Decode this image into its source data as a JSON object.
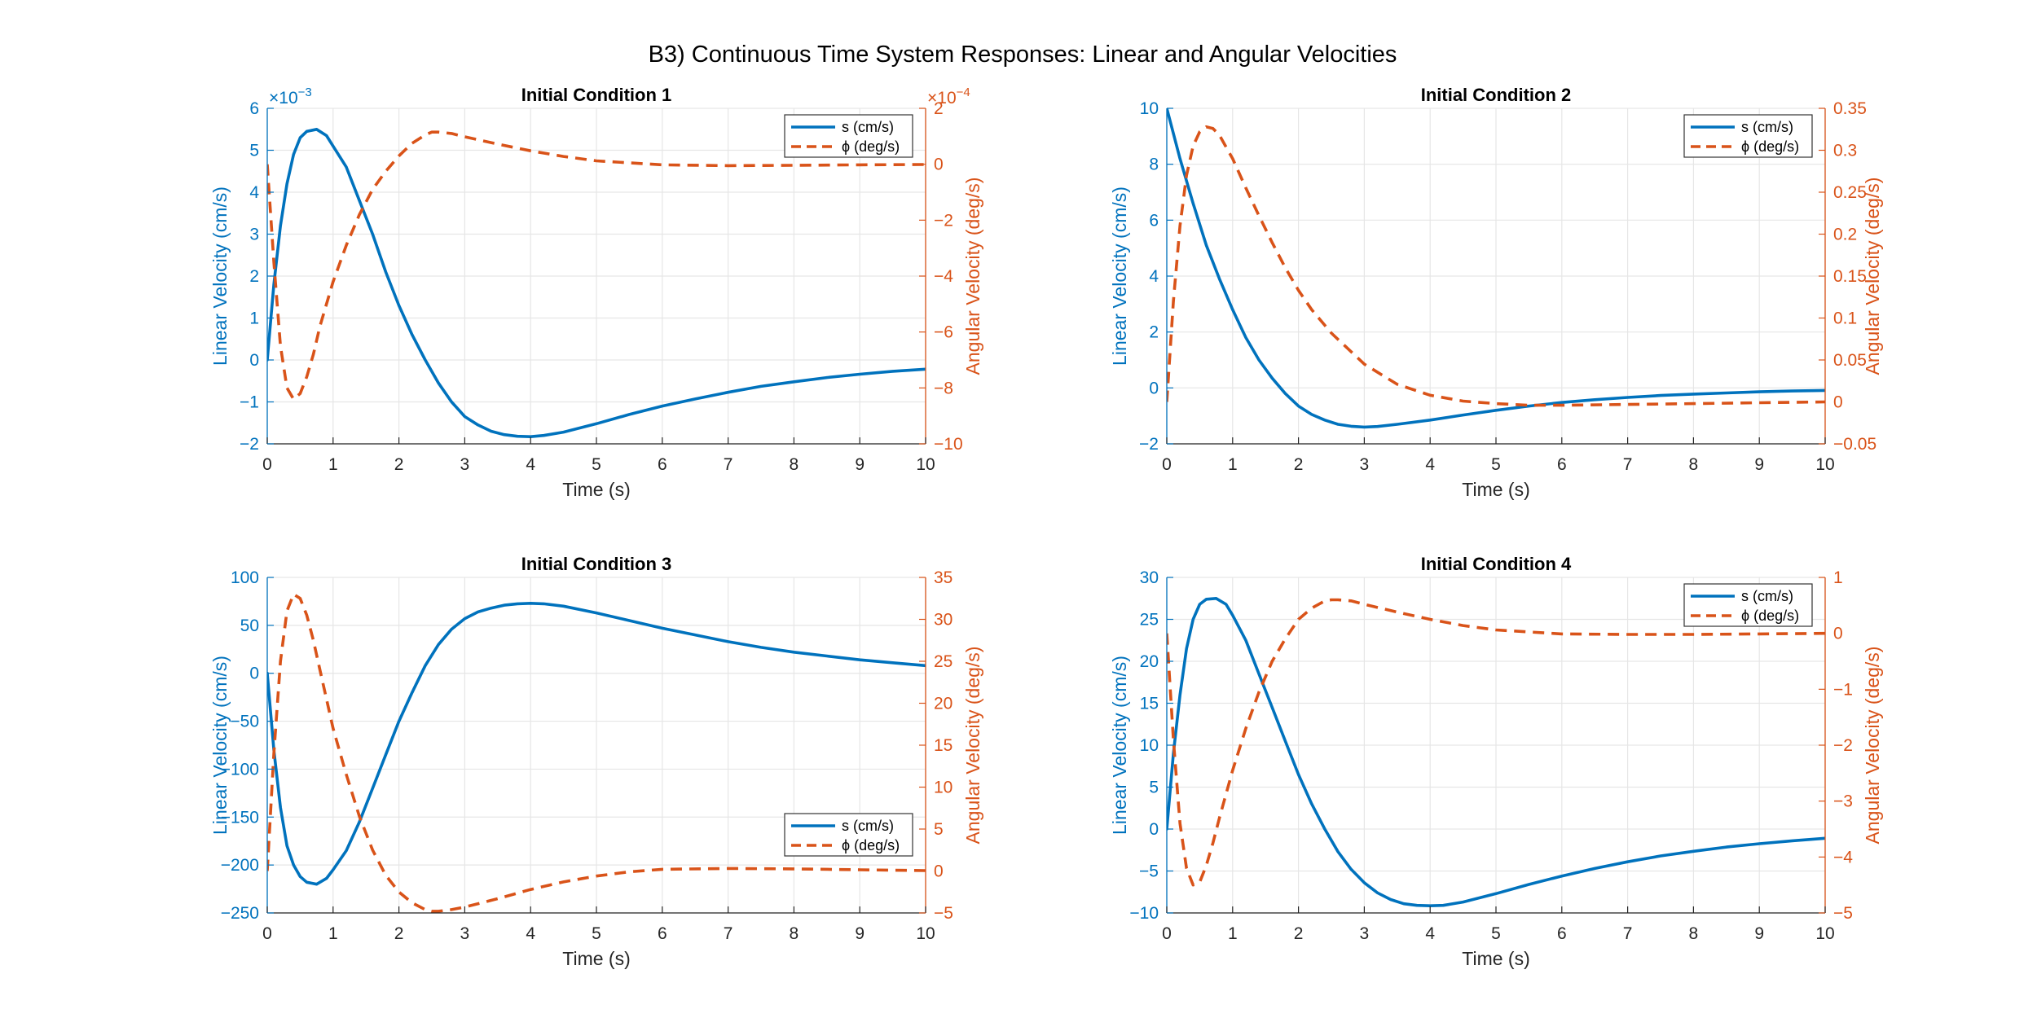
{
  "figure": {
    "title": "B3) Continuous Time System Responses: Linear and Angular Velocities"
  },
  "colors": {
    "linear": "#0072BD",
    "angular": "#D95319",
    "axis": "#262626",
    "grid": "#e6e6e6",
    "background": "#ffffff"
  },
  "chart_data": [
    {
      "type": "line",
      "title": "Initial Condition 1",
      "xlabel": "Time (s)",
      "ylabel_left": "Linear Velocity (cm/s)",
      "ylabel_right": "Angular Velocity (deg/s)",
      "xlim": [
        0,
        10
      ],
      "xticks": [
        0,
        1,
        2,
        3,
        4,
        5,
        6,
        7,
        8,
        9,
        10
      ],
      "ylim_left": [
        -2,
        6
      ],
      "yticks_left": [
        -2,
        -1,
        0,
        1,
        2,
        3,
        4,
        5,
        6
      ],
      "left_exponent": "-3",
      "ylim_right": [
        -10,
        2
      ],
      "yticks_right": [
        -10,
        -8,
        -6,
        -4,
        -2,
        0,
        2
      ],
      "right_exponent": "-4",
      "grid": true,
      "legend_position": "top-right",
      "legend": [
        "s (cm/s)",
        "ϕ (deg/s)"
      ],
      "series": [
        {
          "name": "s (cm/s)",
          "axis": "left",
          "style": "solid",
          "x": [
            0,
            0.1,
            0.2,
            0.3,
            0.4,
            0.5,
            0.6,
            0.75,
            0.9,
            1.0,
            1.2,
            1.4,
            1.6,
            1.8,
            2.0,
            2.2,
            2.4,
            2.6,
            2.8,
            3.0,
            3.2,
            3.4,
            3.6,
            3.8,
            4.0,
            4.2,
            4.5,
            5.0,
            5.5,
            6.0,
            6.5,
            7.0,
            7.5,
            8.0,
            8.5,
            9.0,
            9.5,
            10.0
          ],
          "y": [
            0,
            1.8,
            3.2,
            4.2,
            4.9,
            5.3,
            5.45,
            5.5,
            5.35,
            5.1,
            4.6,
            3.8,
            3.0,
            2.1,
            1.3,
            0.6,
            0.0,
            -0.55,
            -1.0,
            -1.35,
            -1.55,
            -1.7,
            -1.78,
            -1.82,
            -1.83,
            -1.8,
            -1.72,
            -1.52,
            -1.3,
            -1.1,
            -0.93,
            -0.77,
            -0.63,
            -0.52,
            -0.42,
            -0.34,
            -0.27,
            -0.22
          ]
        },
        {
          "name": "ϕ (deg/s)",
          "axis": "right",
          "style": "dashed",
          "x": [
            0,
            0.1,
            0.2,
            0.3,
            0.4,
            0.5,
            0.6,
            0.7,
            0.8,
            1.0,
            1.2,
            1.4,
            1.6,
            1.8,
            2.0,
            2.2,
            2.4,
            2.5,
            2.6,
            2.8,
            3.0,
            3.5,
            4.0,
            4.5,
            5.0,
            6.0,
            7.0,
            8.0,
            9.0,
            10.0
          ],
          "y": [
            0,
            -3.5,
            -6.5,
            -8.0,
            -8.4,
            -8.2,
            -7.6,
            -6.8,
            -5.8,
            -4.2,
            -2.9,
            -1.8,
            -0.9,
            -0.25,
            0.3,
            0.75,
            1.05,
            1.15,
            1.15,
            1.1,
            0.98,
            0.72,
            0.48,
            0.28,
            0.12,
            -0.02,
            -0.05,
            -0.04,
            -0.02,
            -0.01
          ]
        }
      ]
    },
    {
      "type": "line",
      "title": "Initial Condition 2",
      "xlabel": "Time (s)",
      "ylabel_left": "Linear Velocity (cm/s)",
      "ylabel_right": "Angular Velocity (deg/s)",
      "xlim": [
        0,
        10
      ],
      "xticks": [
        0,
        1,
        2,
        3,
        4,
        5,
        6,
        7,
        8,
        9,
        10
      ],
      "ylim_left": [
        -2,
        10
      ],
      "yticks_left": [
        -2,
        0,
        2,
        4,
        6,
        8,
        10
      ],
      "left_exponent": "",
      "ylim_right": [
        -0.05,
        0.35
      ],
      "yticks_right": [
        -0.05,
        0,
        0.05,
        0.1,
        0.15,
        0.2,
        0.25,
        0.3,
        0.35
      ],
      "right_exponent": "",
      "grid": true,
      "legend_position": "top-right",
      "legend": [
        "s (cm/s)",
        "ϕ (deg/s)"
      ],
      "series": [
        {
          "name": "s (cm/s)",
          "axis": "left",
          "style": "solid",
          "x": [
            0,
            0.2,
            0.4,
            0.6,
            0.8,
            1.0,
            1.2,
            1.4,
            1.6,
            1.8,
            2.0,
            2.2,
            2.4,
            2.6,
            2.8,
            3.0,
            3.2,
            3.5,
            4.0,
            4.5,
            5.0,
            5.5,
            6.0,
            6.5,
            7.0,
            7.5,
            8.0,
            8.5,
            9.0,
            9.5,
            10.0
          ],
          "y": [
            10,
            8.2,
            6.6,
            5.1,
            3.9,
            2.8,
            1.8,
            1.0,
            0.35,
            -0.2,
            -0.65,
            -0.95,
            -1.15,
            -1.3,
            -1.37,
            -1.4,
            -1.38,
            -1.3,
            -1.15,
            -0.97,
            -0.8,
            -0.65,
            -0.52,
            -0.42,
            -0.34,
            -0.27,
            -0.22,
            -0.18,
            -0.14,
            -0.11,
            -0.09
          ]
        },
        {
          "name": "ϕ (deg/s)",
          "axis": "right",
          "style": "dashed",
          "x": [
            0,
            0.1,
            0.2,
            0.3,
            0.4,
            0.5,
            0.6,
            0.7,
            0.8,
            1.0,
            1.2,
            1.4,
            1.6,
            1.8,
            2.0,
            2.2,
            2.5,
            3.0,
            3.5,
            4.0,
            4.5,
            5.0,
            5.5,
            6.0,
            7.0,
            8.0,
            9.0,
            10.0
          ],
          "y": [
            0,
            0.12,
            0.21,
            0.27,
            0.305,
            0.322,
            0.328,
            0.326,
            0.318,
            0.29,
            0.255,
            0.222,
            0.19,
            0.16,
            0.133,
            0.11,
            0.082,
            0.045,
            0.021,
            0.008,
            0.001,
            -0.002,
            -0.004,
            -0.004,
            -0.003,
            -0.002,
            -0.001,
            0
          ]
        }
      ]
    },
    {
      "type": "line",
      "title": "Initial Condition 3",
      "xlabel": "Time (s)",
      "ylabel_left": "Linear Velocity (cm/s)",
      "ylabel_right": "Angular Velocity (deg/s)",
      "xlim": [
        0,
        10
      ],
      "xticks": [
        0,
        1,
        2,
        3,
        4,
        5,
        6,
        7,
        8,
        9,
        10
      ],
      "ylim_left": [
        -250,
        100
      ],
      "yticks_left": [
        -250,
        -200,
        -150,
        -100,
        -50,
        0,
        50,
        100
      ],
      "left_exponent": "",
      "ylim_right": [
        -5,
        35
      ],
      "yticks_right": [
        -5,
        0,
        5,
        10,
        15,
        20,
        25,
        30,
        35
      ],
      "right_exponent": "",
      "grid": true,
      "legend_position": "bottom-right",
      "legend": [
        "s (cm/s)",
        "ϕ (deg/s)"
      ],
      "series": [
        {
          "name": "s (cm/s)",
          "axis": "left",
          "style": "solid",
          "x": [
            0,
            0.1,
            0.2,
            0.3,
            0.4,
            0.5,
            0.6,
            0.75,
            0.9,
            1.0,
            1.2,
            1.4,
            1.6,
            1.8,
            2.0,
            2.2,
            2.4,
            2.6,
            2.8,
            3.0,
            3.2,
            3.4,
            3.6,
            3.8,
            4.0,
            4.2,
            4.5,
            5.0,
            5.5,
            6.0,
            6.5,
            7.0,
            7.5,
            8.0,
            8.5,
            9.0,
            9.5,
            10.0
          ],
          "y": [
            0,
            -80,
            -140,
            -180,
            -200,
            -212,
            -218,
            -220,
            -214,
            -205,
            -185,
            -155,
            -120,
            -85,
            -50,
            -20,
            8,
            30,
            46,
            57,
            64,
            68,
            71,
            72.5,
            73,
            72.5,
            70,
            63,
            55,
            47,
            40,
            33,
            27,
            22,
            18,
            14,
            11,
            8
          ]
        },
        {
          "name": "ϕ (deg/s)",
          "axis": "right",
          "style": "dashed",
          "x": [
            0,
            0.1,
            0.2,
            0.3,
            0.4,
            0.5,
            0.6,
            0.7,
            0.8,
            1.0,
            1.2,
            1.4,
            1.6,
            1.8,
            2.0,
            2.2,
            2.4,
            2.5,
            2.6,
            2.8,
            3.0,
            3.5,
            4.0,
            4.5,
            5.0,
            5.5,
            6.0,
            7.0,
            8.0,
            9.0,
            10.0
          ],
          "y": [
            0,
            14,
            25,
            31,
            33,
            32.5,
            30.5,
            27.5,
            24,
            17,
            11.5,
            6.5,
            2.5,
            -0.5,
            -2.5,
            -3.8,
            -4.6,
            -4.8,
            -4.8,
            -4.6,
            -4.3,
            -3.3,
            -2.2,
            -1.3,
            -0.6,
            -0.1,
            0.2,
            0.3,
            0.25,
            0.15,
            0.05
          ]
        }
      ]
    },
    {
      "type": "line",
      "title": "Initial Condition 4",
      "xlabel": "Time (s)",
      "ylabel_left": "Linear Velocity (cm/s)",
      "ylabel_right": "Angular Velocity (deg/s)",
      "xlim": [
        0,
        10
      ],
      "xticks": [
        0,
        1,
        2,
        3,
        4,
        5,
        6,
        7,
        8,
        9,
        10
      ],
      "ylim_left": [
        -10,
        30
      ],
      "yticks_left": [
        -10,
        -5,
        0,
        5,
        10,
        15,
        20,
        25,
        30
      ],
      "left_exponent": "",
      "ylim_right": [
        -5,
        1
      ],
      "yticks_right": [
        -5,
        -4,
        -3,
        -2,
        -1,
        0,
        1
      ],
      "right_exponent": "",
      "grid": true,
      "legend_position": "top-right",
      "legend": [
        "s (cm/s)",
        "ϕ (deg/s)"
      ],
      "series": [
        {
          "name": "s (cm/s)",
          "axis": "left",
          "style": "solid",
          "x": [
            0,
            0.1,
            0.2,
            0.3,
            0.4,
            0.5,
            0.6,
            0.75,
            0.9,
            1.0,
            1.2,
            1.4,
            1.6,
            1.8,
            2.0,
            2.2,
            2.4,
            2.6,
            2.8,
            3.0,
            3.2,
            3.4,
            3.6,
            3.8,
            4.0,
            4.2,
            4.5,
            5.0,
            5.5,
            6.0,
            6.5,
            7.0,
            7.5,
            8.0,
            8.5,
            9.0,
            9.5,
            10.0
          ],
          "y": [
            0,
            9,
            16,
            21.5,
            25,
            26.8,
            27.4,
            27.5,
            26.8,
            25.5,
            22.5,
            18.5,
            14.5,
            10.5,
            6.5,
            3.0,
            0.0,
            -2.7,
            -4.8,
            -6.4,
            -7.6,
            -8.4,
            -8.9,
            -9.1,
            -9.15,
            -9.1,
            -8.7,
            -7.7,
            -6.6,
            -5.6,
            -4.7,
            -3.9,
            -3.2,
            -2.65,
            -2.15,
            -1.75,
            -1.4,
            -1.1
          ]
        },
        {
          "name": "ϕ (deg/s)",
          "axis": "right",
          "style": "dashed",
          "x": [
            0,
            0.1,
            0.2,
            0.3,
            0.4,
            0.5,
            0.6,
            0.7,
            0.8,
            1.0,
            1.2,
            1.4,
            1.6,
            1.8,
            2.0,
            2.2,
            2.4,
            2.5,
            2.6,
            2.8,
            3.0,
            3.5,
            4.0,
            4.5,
            5.0,
            6.0,
            7.0,
            8.0,
            9.0,
            10.0
          ],
          "y": [
            0,
            -1.9,
            -3.4,
            -4.2,
            -4.5,
            -4.45,
            -4.15,
            -3.75,
            -3.3,
            -2.45,
            -1.7,
            -1.05,
            -0.5,
            -0.1,
            0.25,
            0.45,
            0.58,
            0.6,
            0.6,
            0.58,
            0.52,
            0.38,
            0.25,
            0.14,
            0.06,
            -0.01,
            -0.02,
            -0.02,
            -0.01,
            0
          ]
        }
      ]
    }
  ]
}
